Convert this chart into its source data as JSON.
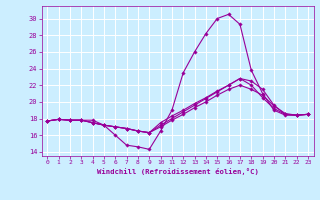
{
  "bg_color": "#cceeff",
  "line_color": "#990099",
  "grid_color": "#ffffff",
  "xlabel": "Windchill (Refroidissement éolien,°C)",
  "xlabel_color": "#990099",
  "tick_color": "#990099",
  "ylim": [
    13.5,
    31.5
  ],
  "xlim": [
    -0.5,
    23.5
  ],
  "yticks": [
    14,
    16,
    18,
    20,
    22,
    24,
    26,
    28,
    30
  ],
  "xticks": [
    0,
    1,
    2,
    3,
    4,
    5,
    6,
    7,
    8,
    9,
    10,
    11,
    12,
    13,
    14,
    15,
    16,
    17,
    18,
    19,
    20,
    21,
    22,
    23
  ],
  "series": [
    [
      17.7,
      17.9,
      17.8,
      17.8,
      17.8,
      17.2,
      16.0,
      14.8,
      14.6,
      14.3,
      16.5,
      19.0,
      23.5,
      26.0,
      28.2,
      30.0,
      30.5,
      29.3,
      23.8,
      21.0,
      19.0,
      18.4,
      18.4,
      18.5
    ],
    [
      17.7,
      17.9,
      17.8,
      17.8,
      17.5,
      17.2,
      17.0,
      16.8,
      16.5,
      16.3,
      17.5,
      18.3,
      19.0,
      19.8,
      20.5,
      21.3,
      22.0,
      22.8,
      22.0,
      20.5,
      19.2,
      18.5,
      18.4,
      18.5
    ],
    [
      17.7,
      17.9,
      17.8,
      17.8,
      17.5,
      17.2,
      17.0,
      16.8,
      16.5,
      16.3,
      17.0,
      17.8,
      18.5,
      19.3,
      20.0,
      20.8,
      21.5,
      22.0,
      21.5,
      20.8,
      19.5,
      18.6,
      18.4,
      18.5
    ],
    [
      17.7,
      17.9,
      17.8,
      17.8,
      17.5,
      17.2,
      17.0,
      16.8,
      16.5,
      16.3,
      17.2,
      18.0,
      18.8,
      19.6,
      20.4,
      21.2,
      22.0,
      22.8,
      22.5,
      21.5,
      19.6,
      18.5,
      18.4,
      18.5
    ]
  ]
}
